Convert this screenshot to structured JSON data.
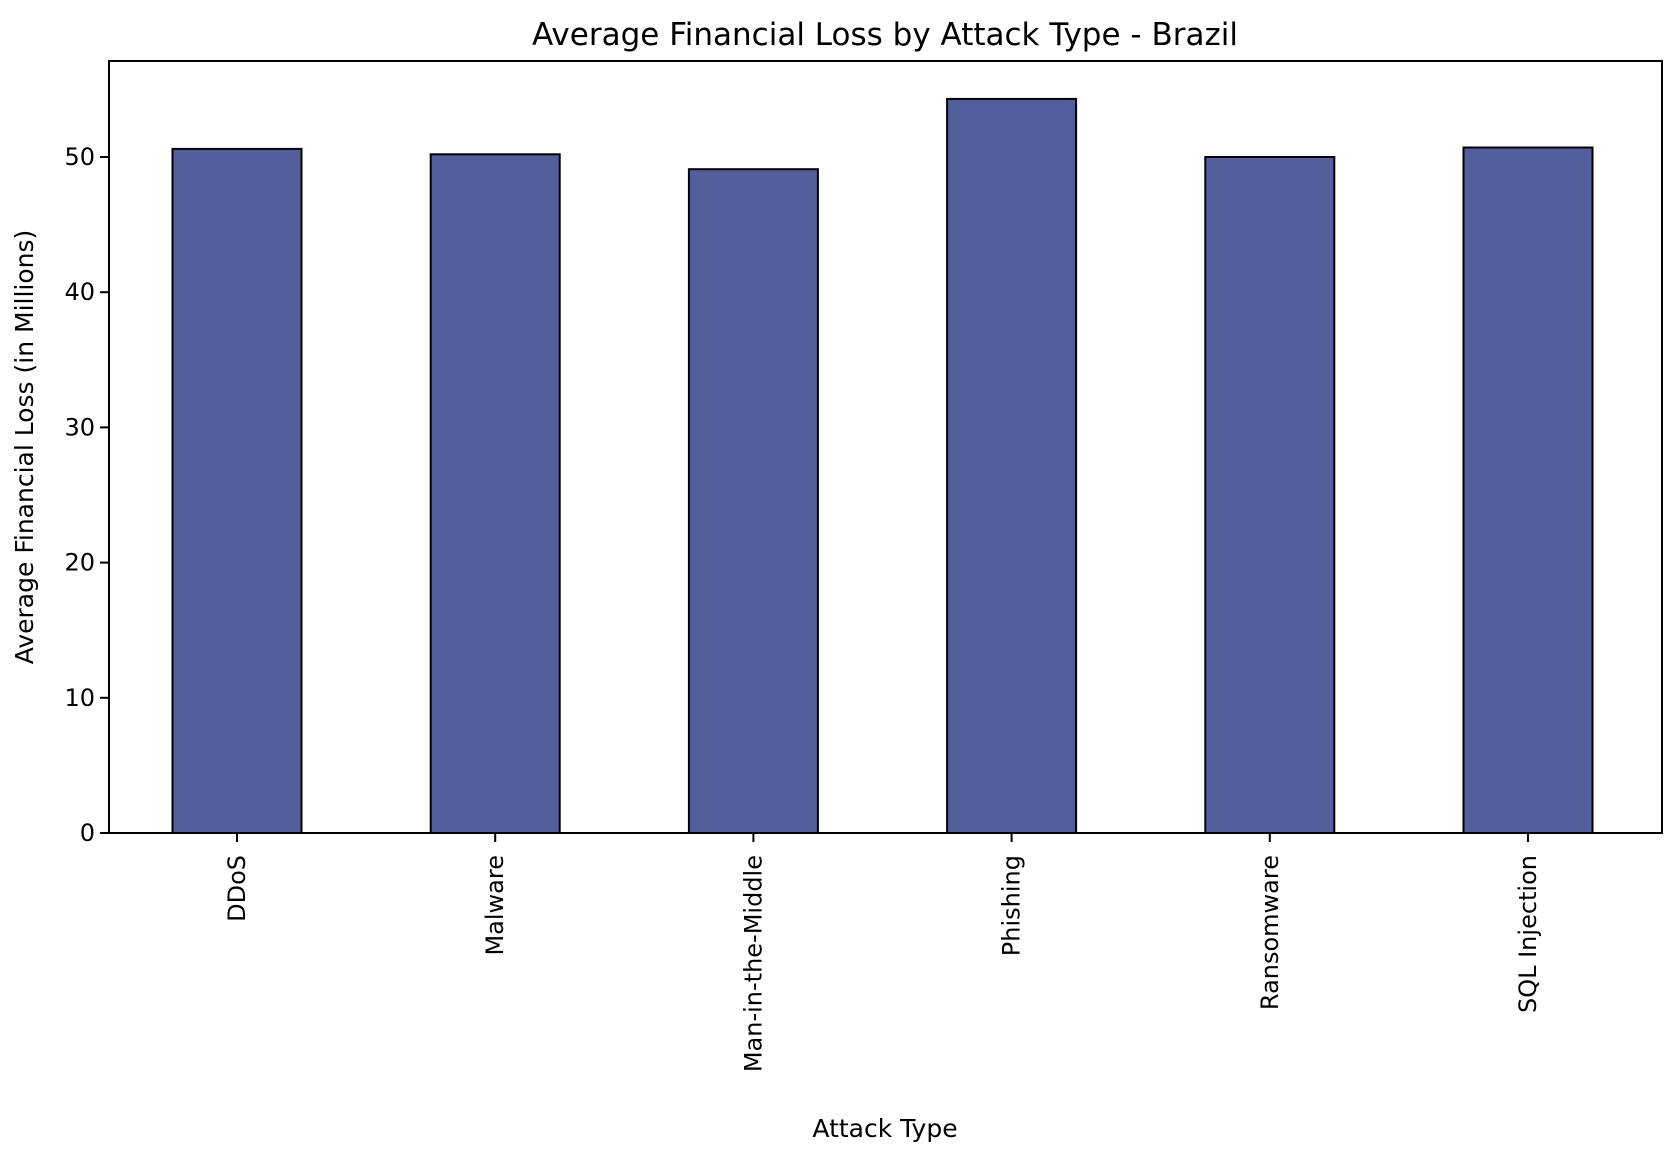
{
  "chart_data": {
    "type": "bar",
    "title": "Average Financial Loss by Attack Type - Brazil",
    "xlabel": "Attack Type",
    "ylabel": "Average Financial Loss (in Millions)",
    "categories": [
      "DDoS",
      "Malware",
      "Man-in-the-Middle",
      "Phishing",
      "Ransomware",
      "SQL Injection"
    ],
    "values": [
      50.6,
      50.2,
      49.1,
      54.3,
      50.0,
      50.7
    ],
    "yticks": [
      0,
      10,
      20,
      30,
      40,
      50
    ],
    "ytick_labels": [
      "0",
      "10",
      "20",
      "30",
      "40",
      "50"
    ],
    "ylim": [
      0,
      57.1
    ],
    "grid": false,
    "legend": "none",
    "bar_color": "#525f9c",
    "edge_color": "#000000"
  }
}
